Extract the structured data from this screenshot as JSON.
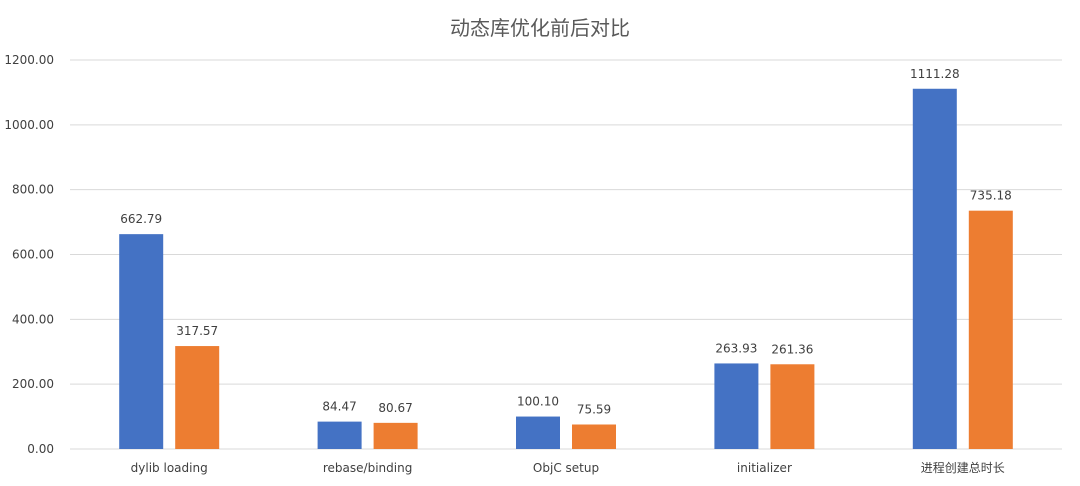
{
  "chart_data": {
    "type": "bar",
    "title": "动态库优化前后对比",
    "categories": [
      "dylib loading",
      "rebase/binding",
      "ObjC setup",
      "initializer",
      "进程创建总时长"
    ],
    "series": [
      {
        "values": [
          662.79,
          84.47,
          100.1,
          263.93,
          1111.28
        ],
        "labels": [
          "662.79",
          "84.47",
          "100.10",
          "263.93",
          "1111.28"
        ],
        "color": "#4472c4"
      },
      {
        "values": [
          317.57,
          80.67,
          75.59,
          261.36,
          735.18
        ],
        "labels": [
          "317.57",
          "80.67",
          "75.59",
          "261.36",
          "735.18"
        ],
        "color": "#ed7d31"
      }
    ],
    "ylim": [
      0,
      1200
    ],
    "yticks": [
      "0.00",
      "200.00",
      "400.00",
      "600.00",
      "800.00",
      "1000.00",
      "1200.00"
    ],
    "xlabel": "",
    "ylabel": "",
    "grid": true,
    "legend": "none"
  }
}
